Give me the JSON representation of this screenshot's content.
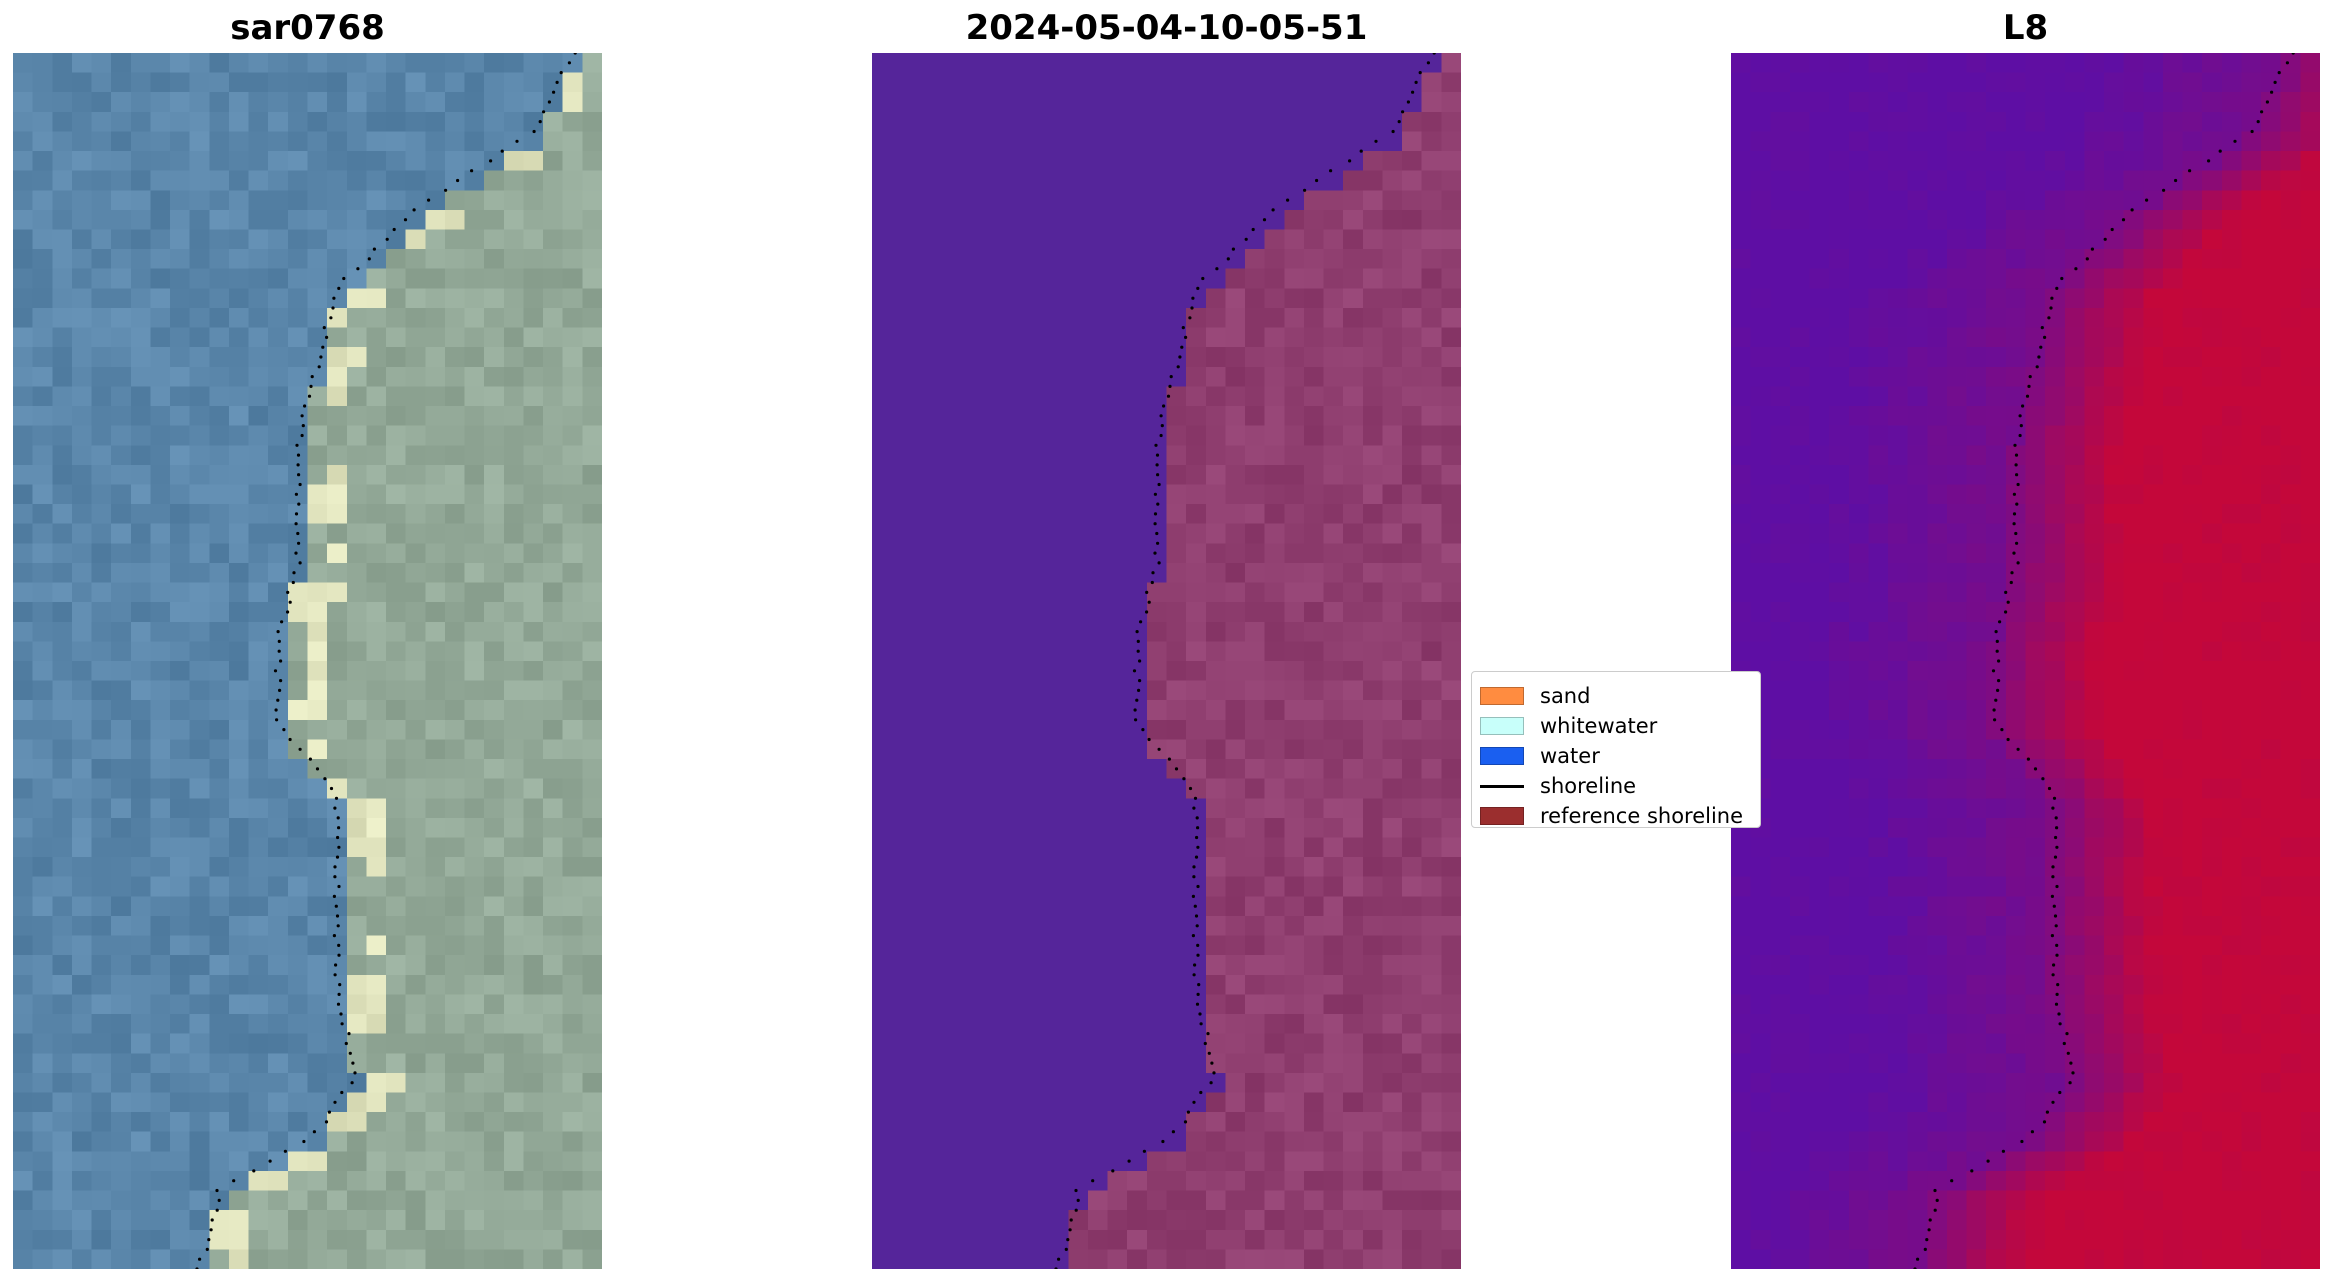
{
  "panels": [
    {
      "title": "sar0768",
      "style": "rgb"
    },
    {
      "title": "2024-05-04-10-05-51",
      "style": "classified"
    },
    {
      "title": "L8",
      "style": "index"
    }
  ],
  "legend": {
    "items": [
      {
        "label": "sand",
        "kind": "patch",
        "color": "#ff8c40"
      },
      {
        "label": "whitewater",
        "kind": "patch",
        "color": "#c8fffa"
      },
      {
        "label": "water",
        "kind": "patch",
        "color": "#1a5ff0"
      },
      {
        "label": "shoreline",
        "kind": "line",
        "color": "#000000"
      },
      {
        "label": "reference shoreline",
        "kind": "patch",
        "color": "#9b2e2e"
      }
    ]
  },
  "colors": {
    "water_class": "#55259a",
    "land_class": "#8f3e6f",
    "index_low": "#5e0ea4",
    "index_high": "#c4073a",
    "rgb_water": "#5a86aa",
    "rgb_land": "#93a998"
  }
}
